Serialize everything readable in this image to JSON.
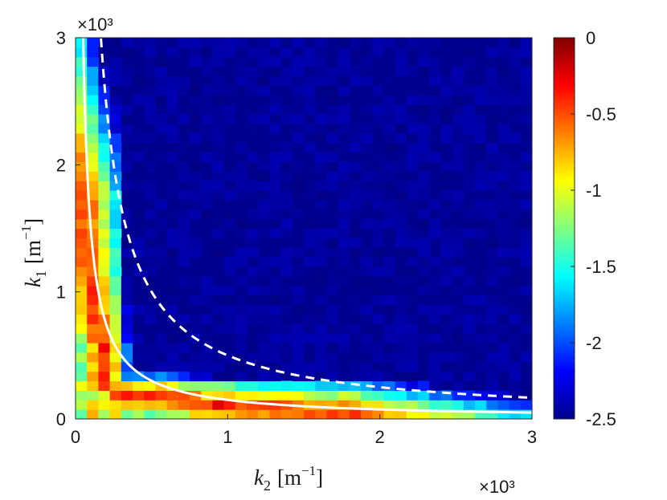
{
  "chart_data": {
    "type": "heatmap",
    "xlabel": "k2 [m^-1]",
    "ylabel": "k1 [m^-1]",
    "xlabel_parts": {
      "var": "k",
      "sub": "2",
      "unit": "[m",
      "sup": "−1",
      "close": "]"
    },
    "ylabel_parts": {
      "var": "k",
      "sub": "1",
      "unit": "[m",
      "sup": "−1",
      "close": "]"
    },
    "x_exponent": "×10³",
    "y_exponent": "×10³",
    "x_ticks": [
      0,
      1000,
      2000,
      3000
    ],
    "x_tick_labels": [
      "0",
      "1",
      "2",
      "3"
    ],
    "y_ticks": [
      0,
      1000,
      2000,
      3000
    ],
    "y_tick_labels": [
      "0",
      "1",
      "2",
      "3"
    ],
    "xlim": [
      0,
      3000
    ],
    "ylim": [
      0,
      3000
    ],
    "grid": false,
    "colormap": "jet",
    "color_range": [
      -2.5,
      0
    ],
    "colorbar_ticks": [
      0,
      -0.5,
      -1,
      -1.5,
      -2,
      -2.5
    ],
    "colorbar_tick_labels": [
      "0",
      "-0.5",
      "-1",
      "-1.5",
      "-2",
      "-2.5"
    ],
    "cell_size": 75,
    "background_value": -2.5,
    "description": "Log-scale spectral density concentrated along two bands: a vertical band at k2 ≈ 0–400 m^-1 extending up to k1 ≈ 3000 m^-1, and a horizontal band at k1 ≈ 0–400 m^-1 extending to k2 ≈ 3000 m^-1, with peak values near -0.3 inside the solid curve region.",
    "curves": [
      {
        "name": "solid",
        "style": "solid",
        "color": "#ffffff",
        "relation": "k1 * k2 = 150000",
        "x_range": [
          50,
          3000
        ]
      },
      {
        "name": "dashed",
        "style": "dashed",
        "color": "#ffffff",
        "relation": "k1 * k2 = 500000",
        "x_range": [
          167,
          3000
        ]
      }
    ]
  }
}
